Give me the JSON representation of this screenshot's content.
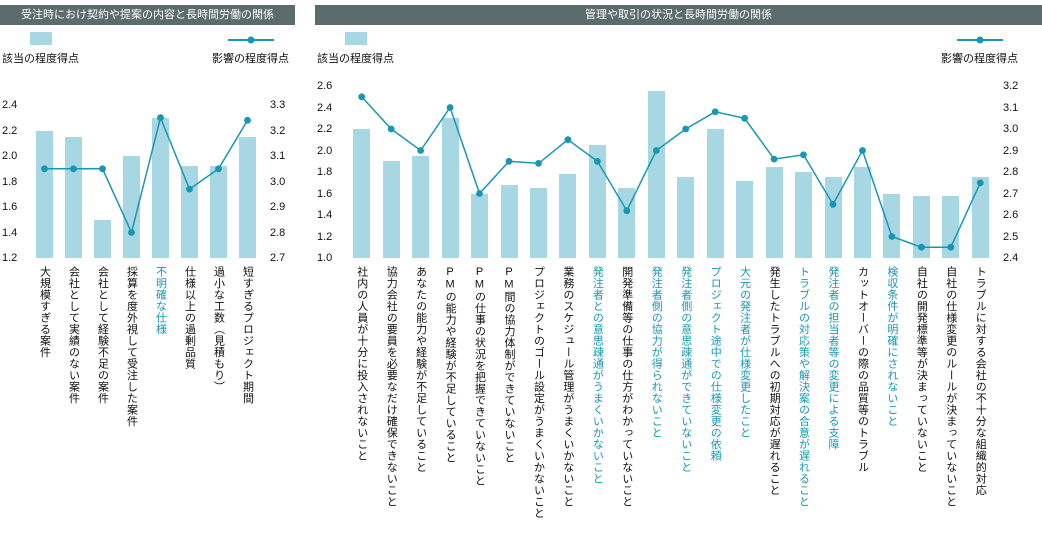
{
  "colors": {
    "header_bg": "#5c6b6b",
    "header_text": "#ffffff",
    "bar_fill": "#a6d7e3",
    "line": "#1897b2",
    "highlight": "#1897b2",
    "text": "#111111"
  },
  "chart_data": [
    {
      "type": "bar",
      "subtype": "bar-with-line-overlay",
      "title": "受注時におけ契約や提案の内容と長時間労働の関係",
      "legend": {
        "bar": "該当の程度得点",
        "line": "影響の程度得点",
        "position": "top"
      },
      "left_axis": {
        "min": 1.2,
        "max": 2.4,
        "ticks": [
          "2.4",
          "2.2",
          "2.0",
          "1.8",
          "1.6",
          "1.4",
          "1.2"
        ]
      },
      "right_axis": {
        "min": 2.7,
        "max": 3.3,
        "ticks": [
          "3.3",
          "3.2",
          "3.1",
          "3.0",
          "2.9",
          "2.8",
          "2.7"
        ]
      },
      "grid": false,
      "categories": [
        "大規模すぎる案件",
        "会社として実績のない案件",
        "会社として経験不足の案件",
        "採算を度外視して受注した案件",
        "不明確な仕様",
        "仕様以上の過剰品質",
        "過小な工数（見積もり）",
        "短すぎるプロジェクト期間"
      ],
      "highlighted_categories": [
        4
      ],
      "series": [
        {
          "name": "該当の程度得点",
          "type": "bar",
          "axis": "left",
          "values": [
            2.2,
            2.15,
            1.5,
            2.0,
            2.3,
            1.92,
            1.92,
            2.15
          ]
        },
        {
          "name": "影響の程度得点",
          "type": "line",
          "axis": "right",
          "values": [
            3.05,
            3.05,
            3.05,
            2.8,
            3.25,
            2.97,
            3.05,
            3.24
          ]
        }
      ]
    },
    {
      "type": "bar",
      "subtype": "bar-with-line-overlay",
      "title": "管理や取引の状況と長時間労働の関係",
      "legend": {
        "bar": "該当の程度得点",
        "line": "影響の程度得点",
        "position": "top"
      },
      "left_axis": {
        "min": 1.0,
        "max": 2.6,
        "ticks": [
          "2.6",
          "2.4",
          "2.2",
          "2.0",
          "1.8",
          "1.6",
          "1.4",
          "1.2",
          "1.0"
        ]
      },
      "right_axis": {
        "min": 2.4,
        "max": 3.2,
        "ticks": [
          "3.2",
          "3.1",
          "3.0",
          "2.9",
          "2.8",
          "2.7",
          "2.6",
          "2.5",
          "2.4"
        ]
      },
      "grid": false,
      "categories": [
        "社内の人員が十分に投入されないこと",
        "協力会社の要員を必要なだけ確保できないこと",
        "あなたの能力や経験が不足していること",
        "PMの能力や経験が不足していること",
        "PMの仕事の状況を把握できていないこと",
        "PM間の協力体制ができていないこと",
        "プロジェクトのゴール設定がうまくいかないこと",
        "業務のスケジュール管理がうまくいかないこと",
        "発注者との意思疎通がうまくいかないこと",
        "開発準備等の仕事の仕方がわかっていないこと",
        "発注者側の協力が得られないこと",
        "発注者側の意思疎通ができていないこと",
        "プロジェクト途中での仕様変更の依頼",
        "大元の発注者が仕様変更したこと",
        "発生したトラブルへの初期対応が遅れること",
        "トラブルの対応策や解決案の合意が遅れること",
        "発注者の担当者等の変更による支障",
        "カットオーバーの際の品質等のトラブル",
        "検収条件が明確にされないこと",
        "自社の開発標準等が決まっていないこと",
        "自社の仕様変更のルールが決まっていないこと",
        "トラブルに対する会社の不十分な組織的対応"
      ],
      "highlighted_categories": [
        8,
        10,
        11,
        12,
        13,
        15,
        16,
        18
      ],
      "series": [
        {
          "name": "該当の程度得点",
          "type": "bar",
          "axis": "left",
          "values": [
            2.2,
            1.9,
            1.95,
            2.3,
            1.6,
            1.68,
            1.65,
            1.78,
            2.05,
            1.65,
            2.55,
            1.75,
            2.2,
            1.72,
            1.85,
            1.8,
            1.75,
            1.85,
            1.6,
            1.58,
            1.58,
            1.75
          ]
        },
        {
          "name": "影響の程度得点",
          "type": "line",
          "axis": "right",
          "values": [
            3.15,
            3.0,
            2.9,
            3.1,
            2.7,
            2.85,
            2.84,
            2.95,
            2.85,
            2.62,
            2.9,
            3.0,
            3.08,
            3.05,
            2.86,
            2.88,
            2.65,
            2.9,
            2.5,
            2.45,
            2.45,
            2.75
          ]
        }
      ]
    }
  ]
}
